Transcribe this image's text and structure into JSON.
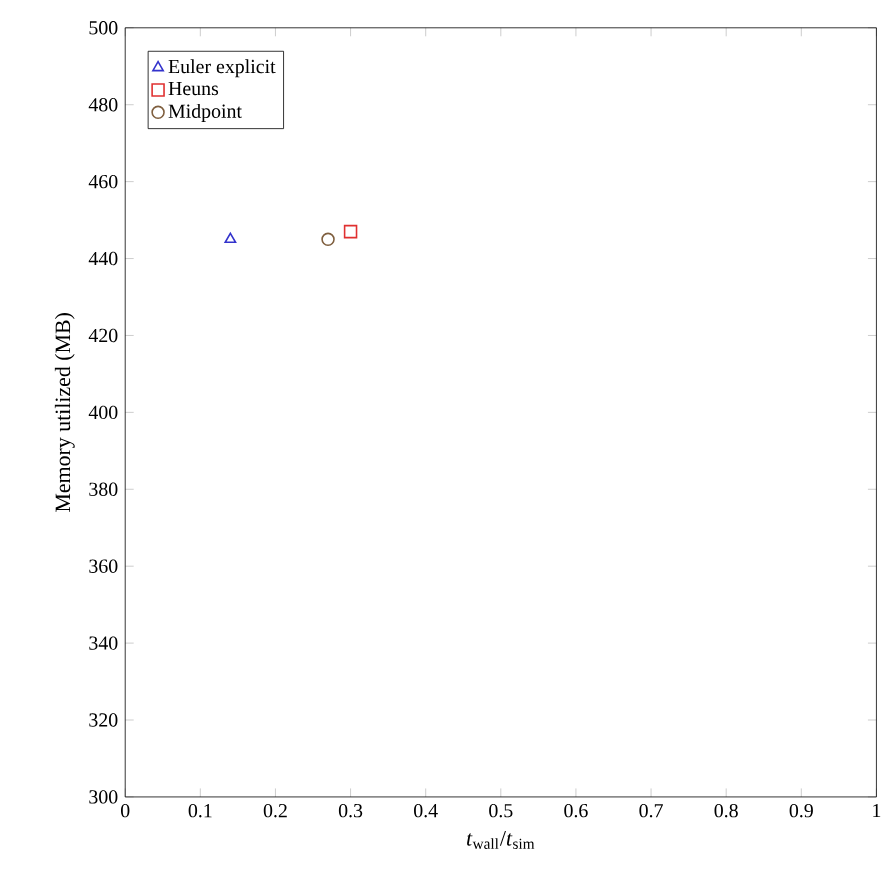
{
  "chart_data": {
    "type": "scatter",
    "xlabel": "*t*$_{wall}$/*t*$_{sim}$",
    "ylabel": "Memory utilized (MB)",
    "xlim": [
      0,
      1
    ],
    "ylim": [
      300,
      500
    ],
    "xticks": [
      0,
      0.1,
      0.2,
      0.3,
      0.4,
      0.5,
      0.6,
      0.7,
      0.8,
      0.9,
      1
    ],
    "yticks": [
      300,
      320,
      340,
      360,
      380,
      400,
      420,
      440,
      460,
      480,
      500
    ],
    "legend": "top left",
    "series": [
      {
        "name": "Euler explicit",
        "color": "#3333cc",
        "marker": "triangle",
        "x": [
          0.14
        ],
        "values": [
          445
        ]
      },
      {
        "name": "Heuns",
        "color": "#e03030",
        "marker": "square",
        "x": [
          0.3
        ],
        "values": [
          447
        ]
      },
      {
        "name": "Midpoint",
        "color": "#7f5f3f",
        "marker": "circle",
        "x": [
          0.27
        ],
        "values": [
          445
        ]
      }
    ]
  }
}
